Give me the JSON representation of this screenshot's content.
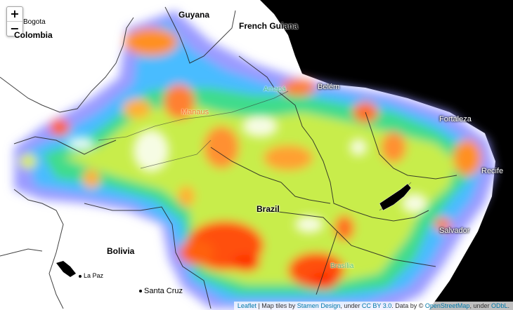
{
  "map": {
    "zoom_in": "+",
    "zoom_out": "−",
    "labels": {
      "guyana": "Guyana",
      "french_guiana": "French Guiana",
      "colombia": "Colombia",
      "bogota": "Bogota",
      "brazil": "Brazil",
      "bolivia": "Bolivia",
      "la_paz": "La Paz",
      "santa_cruz": "Santa Cruz",
      "manaus": "Manaus",
      "amapa": "Amapá",
      "belem": "Belém",
      "fortaleza": "Fortaleza",
      "recife": "Recife",
      "salvador": "Salvador",
      "brasilia": "Brasília"
    },
    "attribution": {
      "leaflet": "Leaflet",
      "text1": " | Map tiles by ",
      "stamen": "Stamen Design",
      "text2": ", under ",
      "ccby": "CC BY 3.0",
      "text3": ". Data by © ",
      "osm": "OpenStreetMap",
      "text4": ", under ",
      "odbl": "ODbL",
      "text5": "."
    },
    "colors": {
      "ocean": "#000000",
      "land": "#ffffff",
      "heat_low": "#8080ff",
      "heat_high": "#ff3000"
    }
  }
}
